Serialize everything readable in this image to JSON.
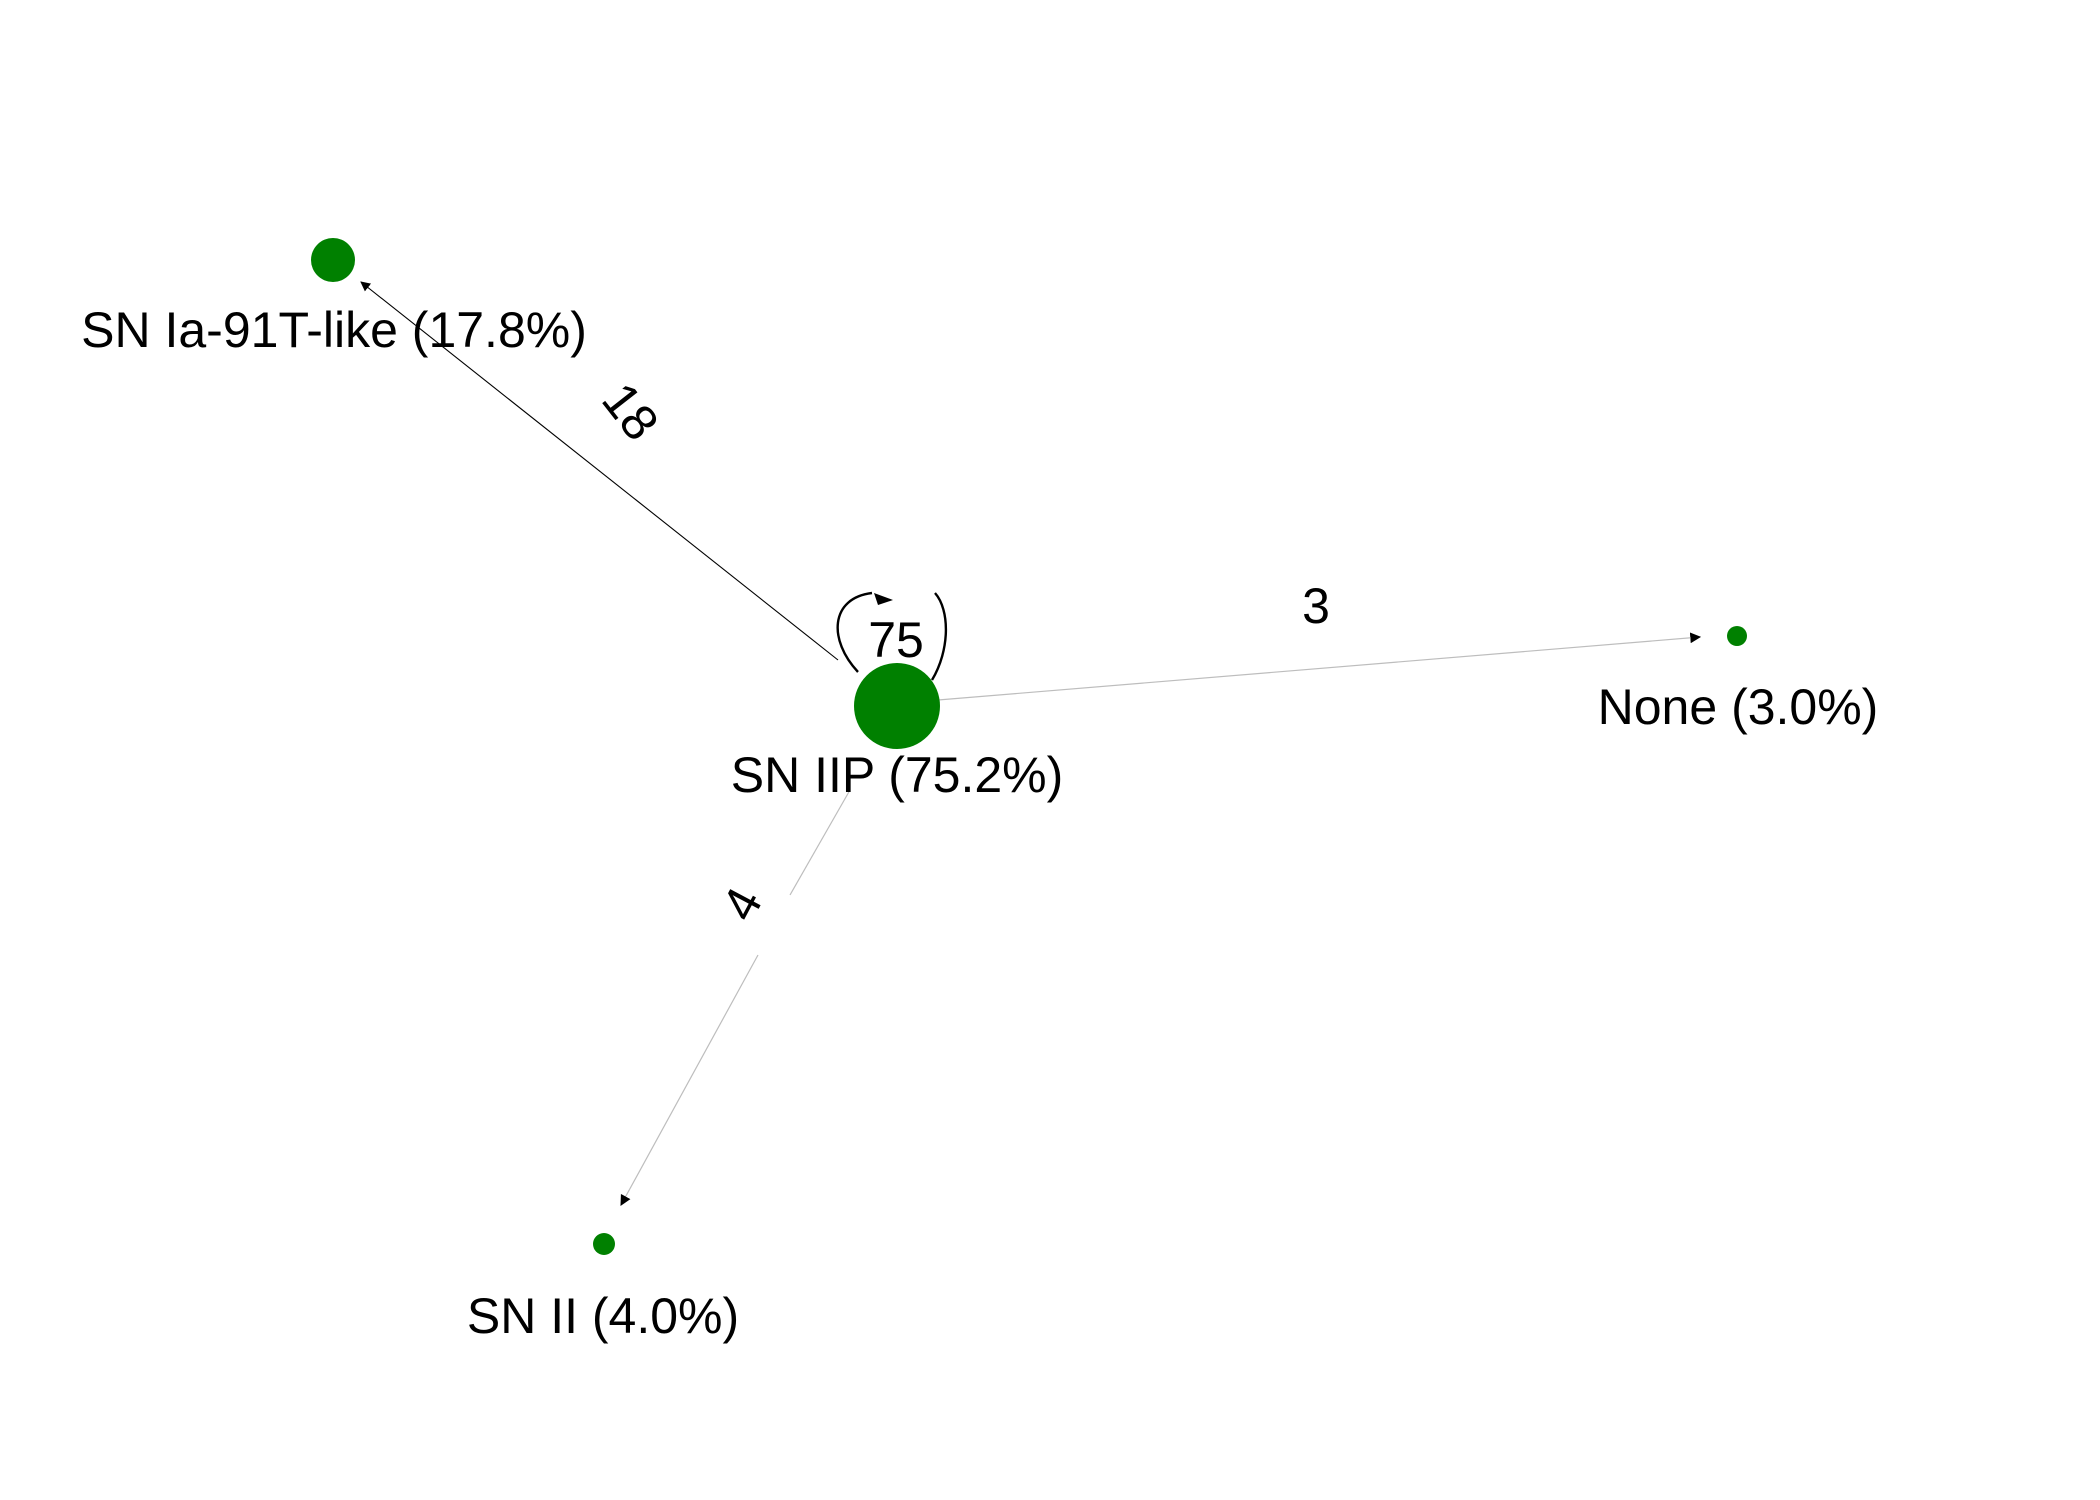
{
  "node_color": "#008000",
  "edge_color": "#000000",
  "nodes": [
    {
      "id": "sn-iip",
      "label": "SN IIP (75.2%)",
      "percent": 75.2
    },
    {
      "id": "sn-ia-91t",
      "label": "SN Ia-91T-like (17.8%)",
      "percent": 17.8
    },
    {
      "id": "none",
      "label": "None (3.0%)",
      "percent": 3.0
    },
    {
      "id": "sn-ii",
      "label": "SN II (4.0%)",
      "percent": 4.0
    }
  ],
  "edges": [
    {
      "source": "sn-iip",
      "target": "sn-iip",
      "label": "75",
      "weight": 75
    },
    {
      "source": "sn-iip",
      "target": "sn-ia-91t",
      "label": "18",
      "weight": 18
    },
    {
      "source": "sn-iip",
      "target": "none",
      "label": "3",
      "weight": 3
    },
    {
      "source": "sn-iip",
      "target": "sn-ii",
      "label": "4",
      "weight": 4
    }
  ]
}
